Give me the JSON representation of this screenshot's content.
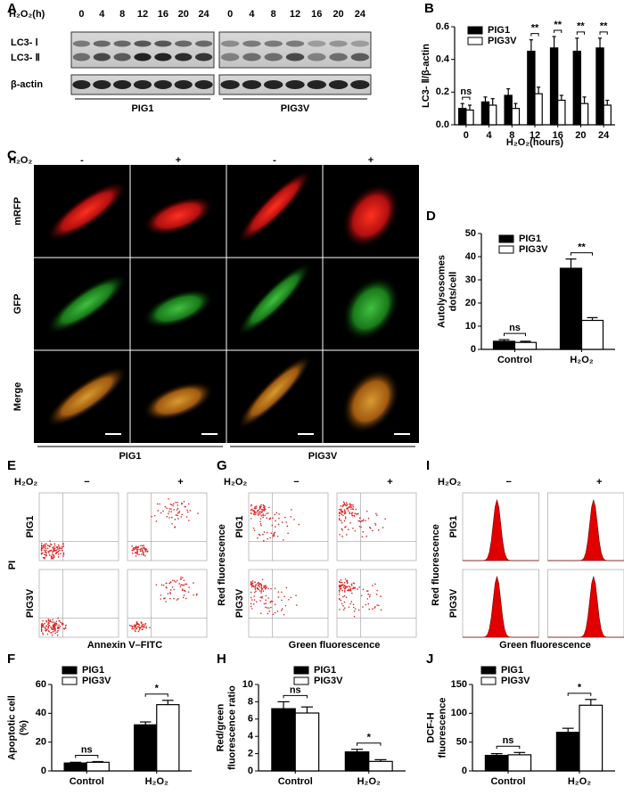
{
  "panels": {
    "letters": [
      "A",
      "B",
      "C",
      "D",
      "E",
      "F",
      "G",
      "H",
      "I",
      "J"
    ],
    "blot": {
      "treatment": "H₂O₂(h)",
      "times": [
        "0",
        "4",
        "8",
        "12",
        "16",
        "20",
        "24"
      ],
      "bands": [
        "LC3- Ⅰ",
        "LC3- Ⅱ",
        "β-actin"
      ],
      "groups": [
        "PIG1",
        "PIG3V"
      ]
    },
    "microscopy": {
      "treatment": "H₂O₂",
      "signs": [
        "-",
        "+",
        "-",
        "+"
      ],
      "rows": [
        "mRFP",
        "GFP",
        "Merge"
      ],
      "groups": [
        "PIG1",
        "PIG3V"
      ]
    },
    "flow": [
      {
        "treatment": "H₂O₂",
        "signs": [
          "−",
          "+"
        ],
        "rows": [
          "PIG1",
          "PIG3V"
        ],
        "ylabel": "PI",
        "xlabel": "Annexin V–FITC"
      },
      {
        "treatment": "H₂O₂",
        "signs": [
          "−",
          "+"
        ],
        "rows": [
          "PIG1",
          "PIG3V"
        ],
        "ylabel": "Red fluorescence",
        "xlabel": "Green fluorescence"
      },
      {
        "treatment": "H₂O₂",
        "signs": [
          "−",
          "+"
        ],
        "rows": [
          "PIG1",
          "PIG3V"
        ],
        "ylabel": "Red fluorescence",
        "xlabel": "Green fluorescence"
      }
    ]
  },
  "chart_data": [
    {
      "type": "bar",
      "xlabel": "H₂O₂(hours)",
      "ylabel": "LC3- Ⅱ/β-actin",
      "categories": [
        "0",
        "4",
        "8",
        "12",
        "16",
        "20",
        "24"
      ],
      "series": [
        {
          "name": "PIG1",
          "color": "#000000",
          "values": [
            0.1,
            0.14,
            0.18,
            0.45,
            0.47,
            0.45,
            0.47
          ],
          "errors": [
            0.03,
            0.03,
            0.04,
            0.07,
            0.07,
            0.08,
            0.06
          ]
        },
        {
          "name": "PIG3V",
          "color": "#ffffff",
          "values": [
            0.09,
            0.12,
            0.1,
            0.19,
            0.15,
            0.13,
            0.12
          ],
          "errors": [
            0.03,
            0.04,
            0.03,
            0.04,
            0.03,
            0.04,
            0.03
          ]
        }
      ],
      "significance": [
        "ns",
        null,
        null,
        "**",
        "**",
        "**",
        "**"
      ],
      "ylim": [
        0,
        0.6
      ],
      "yticks": [
        {
          "value": 0,
          "label": "0.0"
        },
        0.2,
        0.4,
        0.6
      ],
      "legend": "upper left"
    },
    {
      "type": "bar",
      "ylabel": [
        "Autolysosomes",
        "dots/cell"
      ],
      "categories": [
        "Control",
        "H₂O₂"
      ],
      "series": [
        {
          "name": "PIG1",
          "color": "#000000",
          "values": [
            3.5,
            35
          ],
          "errors": [
            0.7,
            4
          ]
        },
        {
          "name": "PIG3V",
          "color": "#ffffff",
          "values": [
            3,
            12.5
          ],
          "errors": [
            0.5,
            1.2
          ]
        }
      ],
      "significance": [
        "ns",
        "**"
      ],
      "ylim": [
        0,
        50
      ],
      "yticks": [
        0,
        10,
        20,
        30,
        40,
        50
      ],
      "legend": "upper left"
    },
    {
      "type": "bar",
      "ylabel": [
        "Apoptotic cell",
        "(%)"
      ],
      "categories": [
        "Control",
        "H₂O₂"
      ],
      "series": [
        {
          "name": "PIG1",
          "color": "#000000",
          "values": [
            5.5,
            32
          ],
          "errors": [
            0.5,
            2
          ]
        },
        {
          "name": "PIG3V",
          "color": "#ffffff",
          "values": [
            6,
            46
          ],
          "errors": [
            0.5,
            3
          ]
        }
      ],
      "significance": [
        "ns",
        "*"
      ],
      "ylim": [
        0,
        60
      ],
      "yticks": [
        0,
        20,
        40,
        60
      ],
      "legend": "upper left"
    },
    {
      "type": "bar",
      "ylabel": [
        "Red/green",
        "fluorescence ratio"
      ],
      "categories": [
        "Control",
        "H₂O₂"
      ],
      "series": [
        {
          "name": "PIG1",
          "color": "#000000",
          "values": [
            7.2,
            2.2
          ],
          "errors": [
            0.8,
            0.3
          ]
        },
        {
          "name": "PIG3V",
          "color": "#ffffff",
          "values": [
            6.7,
            1.1
          ],
          "errors": [
            0.7,
            0.2
          ]
        }
      ],
      "significance": [
        "ns",
        "*"
      ],
      "ylim": [
        0,
        10
      ],
      "yticks": [
        0,
        2,
        4,
        6,
        8,
        10
      ],
      "legend": "upper left"
    },
    {
      "type": "bar",
      "ylabel": [
        "DCF-H",
        "fluorescence"
      ],
      "categories": [
        "Control",
        "H₂O₂"
      ],
      "series": [
        {
          "name": "PIG1",
          "color": "#000000",
          "values": [
            27,
            67
          ],
          "errors": [
            3,
            7
          ]
        },
        {
          "name": "PIG3V",
          "color": "#ffffff",
          "values": [
            28,
            114
          ],
          "errors": [
            4,
            10
          ]
        }
      ],
      "significance": [
        "ns",
        "*"
      ],
      "ylim": [
        0,
        150
      ],
      "yticks": [
        0,
        50,
        100,
        150
      ],
      "legend": "upper left"
    }
  ]
}
